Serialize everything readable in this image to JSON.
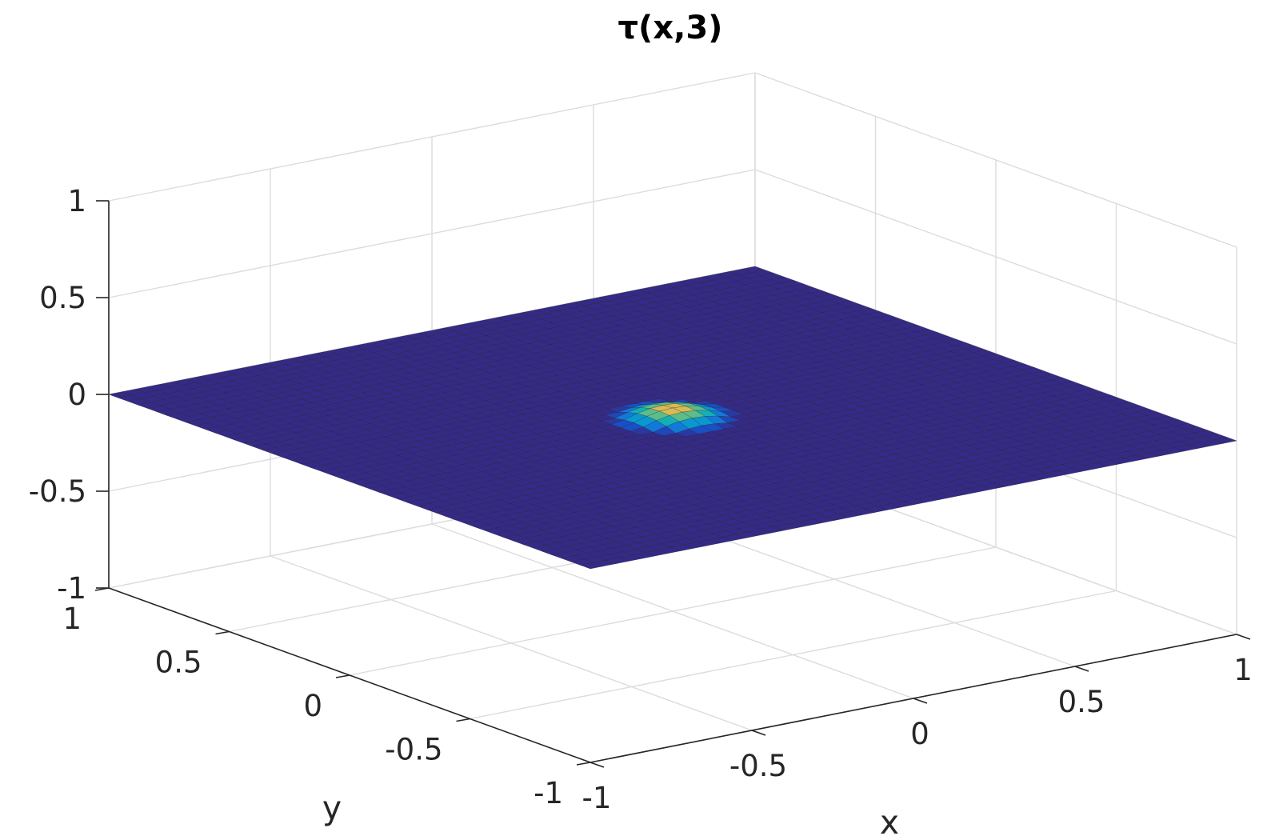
{
  "chart_data": {
    "type": "surface",
    "title": "τ(x,3)",
    "xlabel": "x",
    "ylabel": "y",
    "zlabel": "",
    "xlim": [
      -1,
      1
    ],
    "ylim": [
      -1,
      1
    ],
    "zlim": [
      -1,
      1
    ],
    "xticks": [
      "-1",
      "-0.5",
      "0",
      "0.5",
      "1"
    ],
    "yticks": [
      "-1",
      "-0.5",
      "0",
      "0.5",
      "1"
    ],
    "zticks": [
      "-1",
      "-0.5",
      "0",
      "0.5",
      "1"
    ],
    "grid": true,
    "colormap": "parula",
    "surface": {
      "description": "flat surface at z = 0 over the whole domain with a small dome-shaped bump near the origin",
      "grid_points": 51,
      "baseline_z": 0,
      "bump": {
        "center_x": 0,
        "center_y": 0,
        "radius": 0.14,
        "peak_z": 0.05
      }
    },
    "colors": {
      "surface_low": "#352a87",
      "edge": "#1a1a1a",
      "grid": "#dcdcdc",
      "axis": "#262626"
    }
  }
}
